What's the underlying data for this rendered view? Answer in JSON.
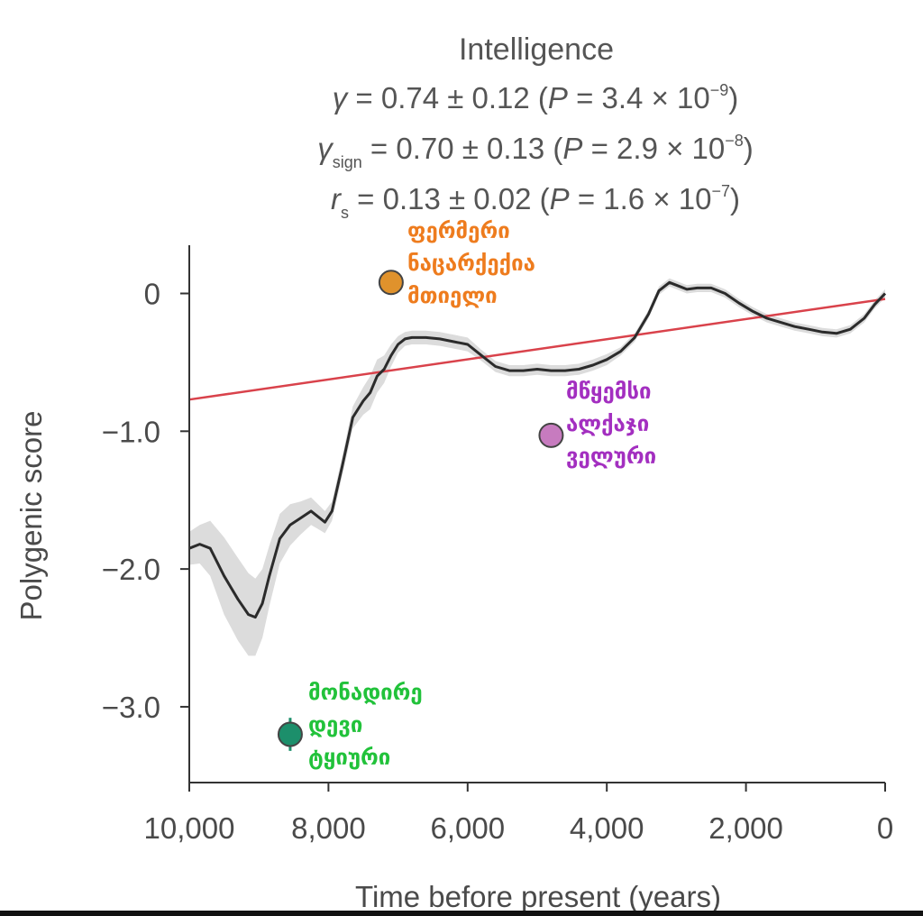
{
  "chart_data": {
    "type": "line",
    "title": "Intelligence",
    "stats": [
      {
        "sym": "γ",
        "sub": "",
        "text": " = 0.74 ± 0.12 (",
        "p": "P",
        "val": " = 3.4 × 10",
        "exp": "−9",
        "close": ")"
      },
      {
        "sym": "γ",
        "sub": "sign",
        "text": " = 0.70 ± 0.13 (",
        "p": "P",
        "val": " = 2.9 × 10",
        "exp": "−8",
        "close": ")"
      },
      {
        "sym": "r",
        "sub": "s",
        "text": " = 0.13 ± 0.02 (",
        "p": "P",
        "val": " = 1.6 × 10",
        "exp": "−7",
        "close": ")"
      }
    ],
    "xlabel": "Time before present (years)",
    "ylabel": "Polygenic score",
    "xlim": [
      10000,
      0
    ],
    "ylim": [
      -3.55,
      0.35
    ],
    "xticks": [
      10000,
      8000,
      6000,
      4000,
      2000,
      0
    ],
    "xtick_labels": [
      "10,000",
      "8,000",
      "6,000",
      "4,000",
      "2,000",
      "0"
    ],
    "yticks": [
      0,
      -1.0,
      -2.0,
      -3.0
    ],
    "ytick_labels": [
      "0",
      "−1.0",
      "−2.0",
      "−3.0"
    ],
    "grid": false,
    "series": [
      {
        "color": "#2b2b2b",
        "x": [
          10000,
          9850,
          9700,
          9500,
          9300,
          9150,
          9050,
          8950,
          8850,
          8700,
          8550,
          8400,
          8250,
          8150,
          8050,
          7950,
          7800,
          7650,
          7500,
          7400,
          7300,
          7200,
          7100,
          7000,
          6900,
          6800,
          6600,
          6400,
          6200,
          6000,
          5800,
          5600,
          5400,
          5200,
          5000,
          4800,
          4600,
          4400,
          4200,
          4000,
          3800,
          3600,
          3400,
          3250,
          3100,
          2950,
          2850,
          2700,
          2500,
          2300,
          2100,
          1900,
          1700,
          1500,
          1300,
          1100,
          900,
          700,
          500,
          300,
          150,
          0
        ],
        "y": [
          -1.85,
          -1.82,
          -1.85,
          -2.05,
          -2.22,
          -2.33,
          -2.35,
          -2.25,
          -2.05,
          -1.78,
          -1.68,
          -1.63,
          -1.58,
          -1.62,
          -1.66,
          -1.58,
          -1.25,
          -0.9,
          -0.78,
          -0.72,
          -0.6,
          -0.55,
          -0.45,
          -0.37,
          -0.33,
          -0.32,
          -0.32,
          -0.33,
          -0.35,
          -0.37,
          -0.45,
          -0.53,
          -0.56,
          -0.56,
          -0.55,
          -0.56,
          -0.56,
          -0.55,
          -0.52,
          -0.48,
          -0.42,
          -0.32,
          -0.15,
          0.02,
          0.08,
          0.05,
          0.03,
          0.04,
          0.04,
          0.0,
          -0.07,
          -0.13,
          -0.18,
          -0.21,
          -0.24,
          -0.26,
          -0.28,
          -0.29,
          -0.26,
          -0.18,
          -0.08,
          0.0
        ]
      },
      {
        "color": "#d9424b",
        "x": [
          10000,
          0
        ],
        "y": [
          -0.77,
          -0.04
        ]
      }
    ],
    "band": {
      "color": "#dcdcdc",
      "halfwidth": [
        0.12,
        0.14,
        0.2,
        0.28,
        0.3,
        0.3,
        0.28,
        0.25,
        0.22,
        0.18,
        0.15,
        0.12,
        0.1,
        0.09,
        0.08,
        0.07,
        0.07,
        0.08,
        0.1,
        0.12,
        0.12,
        0.1,
        0.08,
        0.06,
        0.05,
        0.05,
        0.05,
        0.05,
        0.05,
        0.05,
        0.04,
        0.04,
        0.04,
        0.04,
        0.04,
        0.04,
        0.04,
        0.04,
        0.04,
        0.04,
        0.03,
        0.03,
        0.03,
        0.03,
        0.03,
        0.03,
        0.03,
        0.03,
        0.03,
        0.03,
        0.03,
        0.03,
        0.03,
        0.03,
        0.03,
        0.03,
        0.03,
        0.03,
        0.03,
        0.03,
        0.03,
        0.03
      ]
    },
    "points": [
      {
        "x": 7100,
        "y": 0.08,
        "err": 0.04,
        "color": "#e0922c",
        "label": [
          "ფერმერი",
          "ნაცარქექია",
          "მთიელი"
        ],
        "label_color": "#ee7c1e"
      },
      {
        "x": 4800,
        "y": -1.03,
        "err": 0.05,
        "color": "#c77bbf",
        "label": [
          "მწყემსი",
          "ალქაჯი",
          "ველური"
        ],
        "label_color": "#a32fc0"
      },
      {
        "x": 8550,
        "y": -3.2,
        "err": 0.12,
        "color": "#1c8f6b",
        "label": [
          "მონადირე",
          "დევი",
          "ტყიური"
        ],
        "label_color": "#21c23a"
      }
    ]
  }
}
